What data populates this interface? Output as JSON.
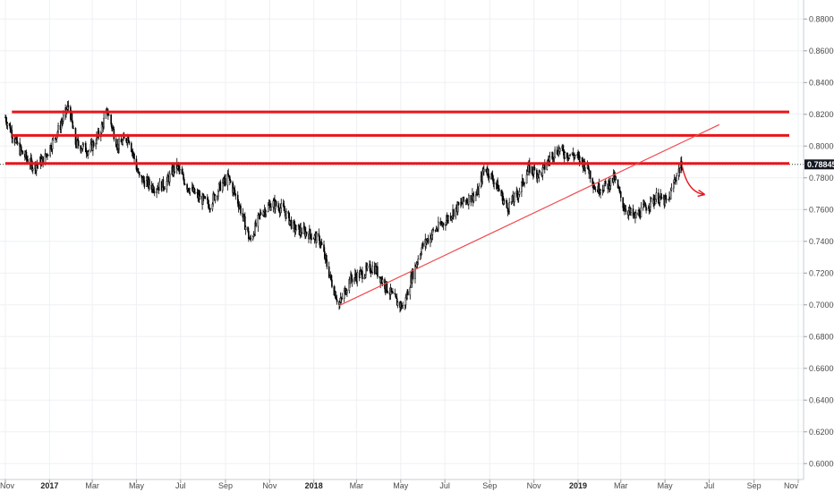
{
  "chart_data": {
    "type": "candlestick",
    "x_ticks": [
      {
        "label": "Nov",
        "bold": false
      },
      {
        "label": "2017",
        "bold": true
      },
      {
        "label": "Mar",
        "bold": false
      },
      {
        "label": "May",
        "bold": false
      },
      {
        "label": "Jul",
        "bold": false
      },
      {
        "label": "Sep",
        "bold": false
      },
      {
        "label": "Nov",
        "bold": false
      },
      {
        "label": "2018",
        "bold": true
      },
      {
        "label": "Mar",
        "bold": false
      },
      {
        "label": "May",
        "bold": false
      },
      {
        "label": "Jul",
        "bold": false
      },
      {
        "label": "Sep",
        "bold": false
      },
      {
        "label": "Nov",
        "bold": false
      },
      {
        "label": "2019",
        "bold": true
      },
      {
        "label": "Mar",
        "bold": false
      },
      {
        "label": "May",
        "bold": false
      },
      {
        "label": "Jul",
        "bold": false
      },
      {
        "label": "Sep",
        "bold": false
      },
      {
        "label": "Nov",
        "bold": false
      }
    ],
    "x_tick_dates": [
      "2016-11-01",
      "2017-01-01",
      "2017-03-01",
      "2017-05-01",
      "2017-07-01",
      "2017-09-01",
      "2017-11-01",
      "2018-01-01",
      "2018-03-01",
      "2018-05-01",
      "2018-07-01",
      "2018-09-01",
      "2018-11-01",
      "2019-01-01",
      "2019-03-01",
      "2019-05-01",
      "2019-07-01",
      "2019-09-01",
      "2019-11-01"
    ],
    "y_ticks": [
      "0.60000",
      "0.62000",
      "0.64000",
      "0.66000",
      "0.68000",
      "0.70000",
      "0.72000",
      "0.74000",
      "0.76000",
      "0.78000",
      "0.80000",
      "0.82000",
      "0.84000",
      "0.86000",
      "0.88000"
    ],
    "ylim": [
      0.59,
      0.892
    ],
    "current_price": "0.78845",
    "current_price_value": 0.78845,
    "price_path": [
      [
        "2016-11-01",
        0.818
      ],
      [
        "2016-11-20",
        0.798
      ],
      [
        "2016-12-10",
        0.787
      ],
      [
        "2016-12-25",
        0.792
      ],
      [
        "2017-01-15",
        0.812
      ],
      [
        "2017-01-28",
        0.826
      ],
      [
        "2017-02-05",
        0.802
      ],
      [
        "2017-02-25",
        0.797
      ],
      [
        "2017-03-10",
        0.807
      ],
      [
        "2017-03-22",
        0.822
      ],
      [
        "2017-04-05",
        0.8
      ],
      [
        "2017-04-20",
        0.806
      ],
      [
        "2017-05-05",
        0.78
      ],
      [
        "2017-05-25",
        0.774
      ],
      [
        "2017-06-10",
        0.776
      ],
      [
        "2017-06-25",
        0.788
      ],
      [
        "2017-07-10",
        0.775
      ],
      [
        "2017-07-25",
        0.768
      ],
      [
        "2017-08-10",
        0.763
      ],
      [
        "2017-08-25",
        0.775
      ],
      [
        "2017-09-05",
        0.78
      ],
      [
        "2017-09-20",
        0.763
      ],
      [
        "2017-10-05",
        0.74
      ],
      [
        "2017-10-20",
        0.758
      ],
      [
        "2017-11-05",
        0.764
      ],
      [
        "2017-11-20",
        0.76
      ],
      [
        "2017-12-05",
        0.748
      ],
      [
        "2017-12-25",
        0.745
      ],
      [
        "2018-01-10",
        0.74
      ],
      [
        "2018-01-25",
        0.715
      ],
      [
        "2018-02-05",
        0.7
      ],
      [
        "2018-02-20",
        0.716
      ],
      [
        "2018-03-10",
        0.72
      ],
      [
        "2018-03-25",
        0.724
      ],
      [
        "2018-04-10",
        0.712
      ],
      [
        "2018-04-25",
        0.702
      ],
      [
        "2018-05-05",
        0.698
      ],
      [
        "2018-05-15",
        0.716
      ],
      [
        "2018-05-30",
        0.736
      ],
      [
        "2018-06-15",
        0.746
      ],
      [
        "2018-06-30",
        0.752
      ],
      [
        "2018-07-15",
        0.76
      ],
      [
        "2018-07-30",
        0.766
      ],
      [
        "2018-08-15",
        0.77
      ],
      [
        "2018-08-25",
        0.787
      ],
      [
        "2018-09-10",
        0.776
      ],
      [
        "2018-09-25",
        0.761
      ],
      [
        "2018-10-10",
        0.77
      ],
      [
        "2018-10-25",
        0.786
      ],
      [
        "2018-11-10",
        0.782
      ],
      [
        "2018-11-25",
        0.794
      ],
      [
        "2018-12-05",
        0.798
      ],
      [
        "2018-12-15",
        0.795
      ],
      [
        "2018-12-28",
        0.794
      ],
      [
        "2019-01-15",
        0.786
      ],
      [
        "2019-01-25",
        0.773
      ],
      [
        "2019-02-10",
        0.775
      ],
      [
        "2019-02-20",
        0.78
      ],
      [
        "2019-03-05",
        0.762
      ],
      [
        "2019-03-20",
        0.755
      ],
      [
        "2019-04-05",
        0.762
      ],
      [
        "2019-04-20",
        0.768
      ],
      [
        "2019-05-05",
        0.764
      ],
      [
        "2019-05-15",
        0.78
      ],
      [
        "2019-05-25",
        0.789
      ]
    ],
    "annotations": {
      "resistance_lines": [
        {
          "y": 0.8215,
          "start": "2016-11-10",
          "end": "2019-11-01",
          "color": "#e8141a"
        },
        {
          "y": 0.8067,
          "start": "2016-11-10",
          "end": "2019-11-01",
          "color": "#e8141a"
        },
        {
          "y": 0.789,
          "start": "2016-11-01",
          "end": "2019-11-01",
          "color": "#e8141a"
        }
      ],
      "trendline": {
        "start": [
          "2018-02-05",
          0.6995
        ],
        "end": [
          "2019-07-15",
          0.8135
        ],
        "color": "#f0484c"
      },
      "arrow": {
        "start": [
          "2019-05-25",
          0.787
        ],
        "end": [
          "2019-06-25",
          0.7695
        ],
        "color": "#e8141a"
      }
    }
  }
}
